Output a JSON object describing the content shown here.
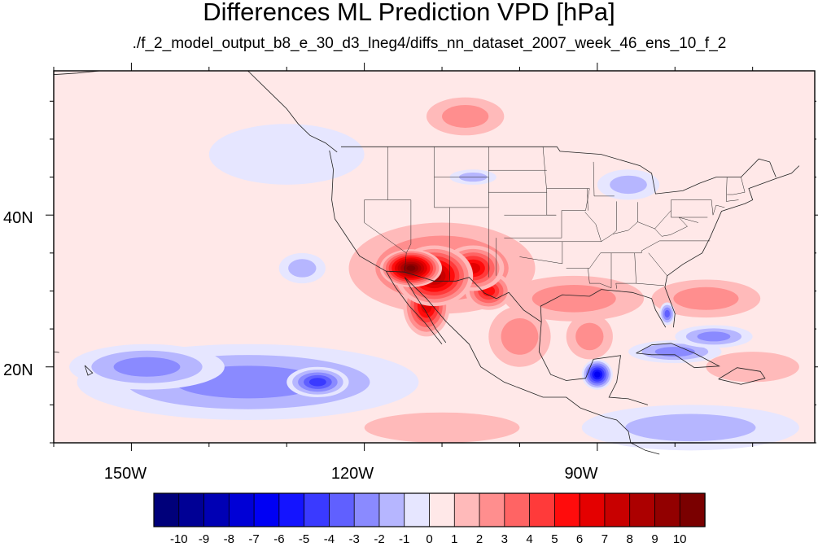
{
  "title": "Differences ML Prediction VPD [hPa]",
  "subtitle": "./f_2_model_output_b8_e_30_d3_lneg4/diffs_nn_dataset_2007_week_46_ens_10_f_2",
  "map": {
    "projection": "cylindrical-equidistant",
    "lon_range": [
      -160,
      -62
    ],
    "lat_range": [
      10,
      59
    ],
    "background_value": 0,
    "lat_labels": [
      {
        "value": 40,
        "label": "40N"
      },
      {
        "value": 20,
        "label": "20N"
      }
    ],
    "lon_labels": [
      {
        "value": -150,
        "label": "150W"
      },
      {
        "value": -120,
        "label": "120W"
      },
      {
        "value": -90,
        "label": "90W"
      }
    ],
    "anomalies": [
      {
        "name": "southwest-core",
        "lon": -114,
        "lat": 33,
        "rx": 4,
        "ry": 2.5,
        "value": 10
      },
      {
        "name": "arizona",
        "lon": -111,
        "lat": 32,
        "rx": 5,
        "ry": 4,
        "value": 8
      },
      {
        "name": "new-mexico",
        "lon": -106,
        "lat": 33,
        "rx": 4,
        "ry": 3,
        "value": 6
      },
      {
        "name": "baja",
        "lon": -112,
        "lat": 28,
        "rx": 3,
        "ry": 4,
        "value": 6
      },
      {
        "name": "west-texas",
        "lon": -104,
        "lat": 30,
        "rx": 3,
        "ry": 2.5,
        "value": 5
      },
      {
        "name": "southwest-wide",
        "lon": -110,
        "lat": 33,
        "rx": 12,
        "ry": 6,
        "value": 3
      },
      {
        "name": "gulf-coast",
        "lon": -93,
        "lat": 29,
        "rx": 9,
        "ry": 3,
        "value": 2
      },
      {
        "name": "southeast-atlantic",
        "lon": -76,
        "lat": 29,
        "rx": 7,
        "ry": 2.5,
        "value": 2
      },
      {
        "name": "gulf-of-mexico",
        "lon": -91,
        "lat": 24,
        "rx": 3,
        "ry": 3,
        "value": 2
      },
      {
        "name": "mexico-interior",
        "lon": -100,
        "lat": 24,
        "rx": 4,
        "ry": 4,
        "value": 2
      },
      {
        "name": "canada-prairies",
        "lon": -107,
        "lat": 53,
        "rx": 5,
        "ry": 2.5,
        "value": 2
      },
      {
        "name": "east-pacific-south",
        "lon": -110,
        "lat": 12,
        "rx": 10,
        "ry": 2,
        "value": 1
      },
      {
        "name": "caribbean-north",
        "lon": -70,
        "lat": 20,
        "rx": 6,
        "ry": 2,
        "value": 1
      },
      {
        "name": "pacific-subtropical-blue",
        "lon": -135,
        "lat": 18,
        "rx": 22,
        "ry": 5,
        "value": -3
      },
      {
        "name": "pacific-blue-core",
        "lon": -126,
        "lat": 18,
        "rx": 4,
        "ry": 2,
        "value": -5
      },
      {
        "name": "pacific-blue-west",
        "lon": -148,
        "lat": 20,
        "rx": 10,
        "ry": 3,
        "value": -3
      },
      {
        "name": "northeast-pacific",
        "lon": -130,
        "lat": 48,
        "rx": 10,
        "ry": 4,
        "value": -1
      },
      {
        "name": "yucatan-blue",
        "lon": -90,
        "lat": 19,
        "rx": 2,
        "ry": 2,
        "value": -7
      },
      {
        "name": "caribbean-blue",
        "lon": -80,
        "lat": 22,
        "rx": 6,
        "ry": 1.5,
        "value": -3
      },
      {
        "name": "bahamas-blue",
        "lon": -75,
        "lat": 24,
        "rx": 5,
        "ry": 1.5,
        "value": -3
      },
      {
        "name": "florida-blue",
        "lon": -81,
        "lat": 27,
        "rx": 1,
        "ry": 1.5,
        "value": -4
      },
      {
        "name": "west-coast-offshore-blue",
        "lon": -128,
        "lat": 33,
        "rx": 3,
        "ry": 2,
        "value": -2
      },
      {
        "name": "great-lakes-blue",
        "lon": -86,
        "lat": 44,
        "rx": 4,
        "ry": 2,
        "value": -2
      },
      {
        "name": "montana-blue",
        "lon": -106,
        "lat": 45,
        "rx": 3,
        "ry": 1,
        "value": -2
      },
      {
        "name": "south-caribbean-blue",
        "lon": -78,
        "lat": 12,
        "rx": 14,
        "ry": 3,
        "value": -2
      }
    ]
  },
  "colorbar": {
    "labels": [
      "-10",
      "-9",
      "-8",
      "-7",
      "-6",
      "-5",
      "-4",
      "-3",
      "-2",
      "-1",
      "0",
      "1",
      "2",
      "3",
      "4",
      "5",
      "6",
      "7",
      "8",
      "9",
      "10"
    ],
    "colors": [
      "#00007a",
      "#000095",
      "#0000b4",
      "#0000d6",
      "#0000f4",
      "#1414ff",
      "#3a3aff",
      "#6060ff",
      "#8a8aff",
      "#b6b6ff",
      "#e6e6ff",
      "#ffe8e8",
      "#ffbaba",
      "#ff8e8e",
      "#ff6464",
      "#ff3a3a",
      "#ff0c0c",
      "#e40000",
      "#c80000",
      "#ac0000",
      "#920000",
      "#7a0000"
    ]
  }
}
